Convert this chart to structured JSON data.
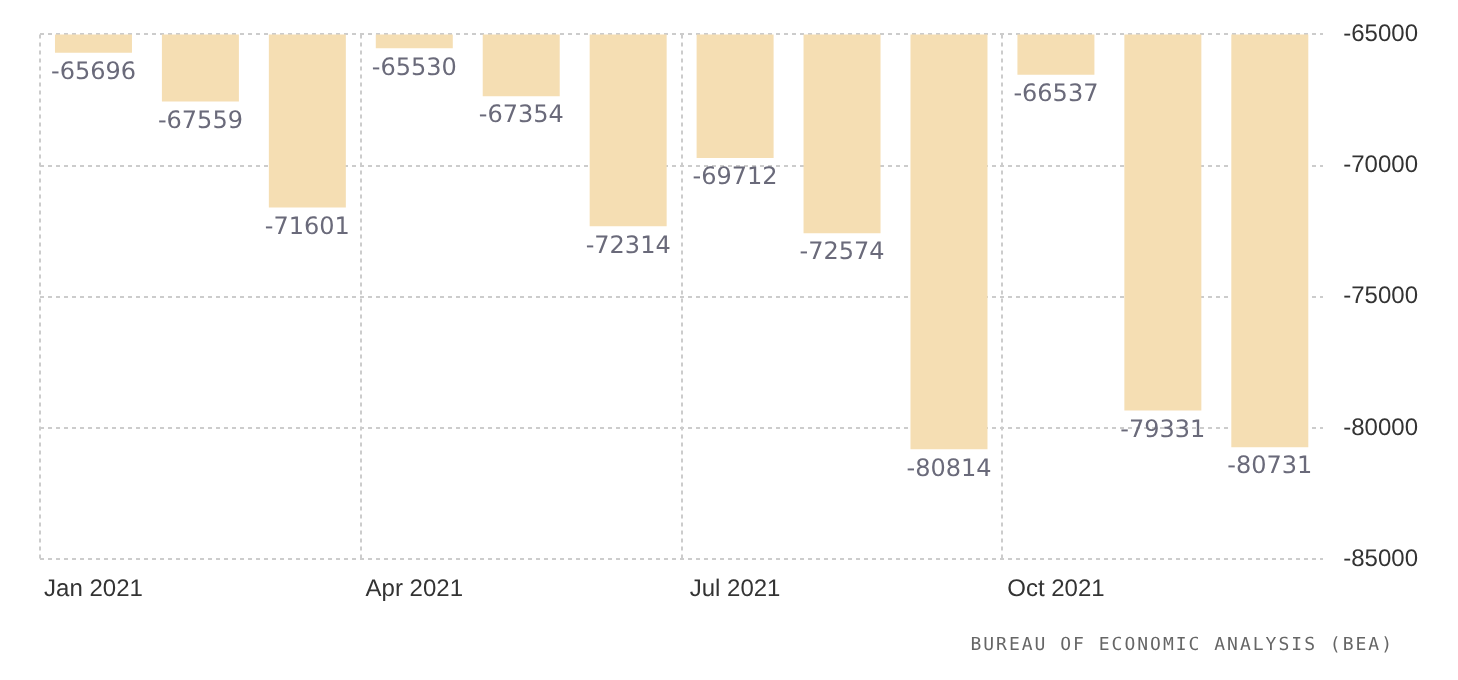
{
  "chart_data": {
    "type": "bar",
    "categories": [
      "Jan 2021",
      null,
      null,
      "Apr 2021",
      null,
      null,
      "Jul 2021",
      null,
      null,
      "Oct 2021",
      null,
      null
    ],
    "values": [
      -65696,
      -67559,
      -71601,
      -65530,
      -67354,
      -72314,
      -69712,
      -72574,
      -80814,
      -66537,
      -79331,
      -80731
    ],
    "color": "#f5deb3",
    "ylim": [
      -85000,
      -65000
    ],
    "yticks": [
      -85000,
      -80000,
      -75000,
      -70000,
      -65000
    ],
    "grid": true,
    "data_labels": true,
    "legend": false,
    "annotations": [
      "BUREAU OF ECONOMIC ANALYSIS (BEA)"
    ]
  }
}
